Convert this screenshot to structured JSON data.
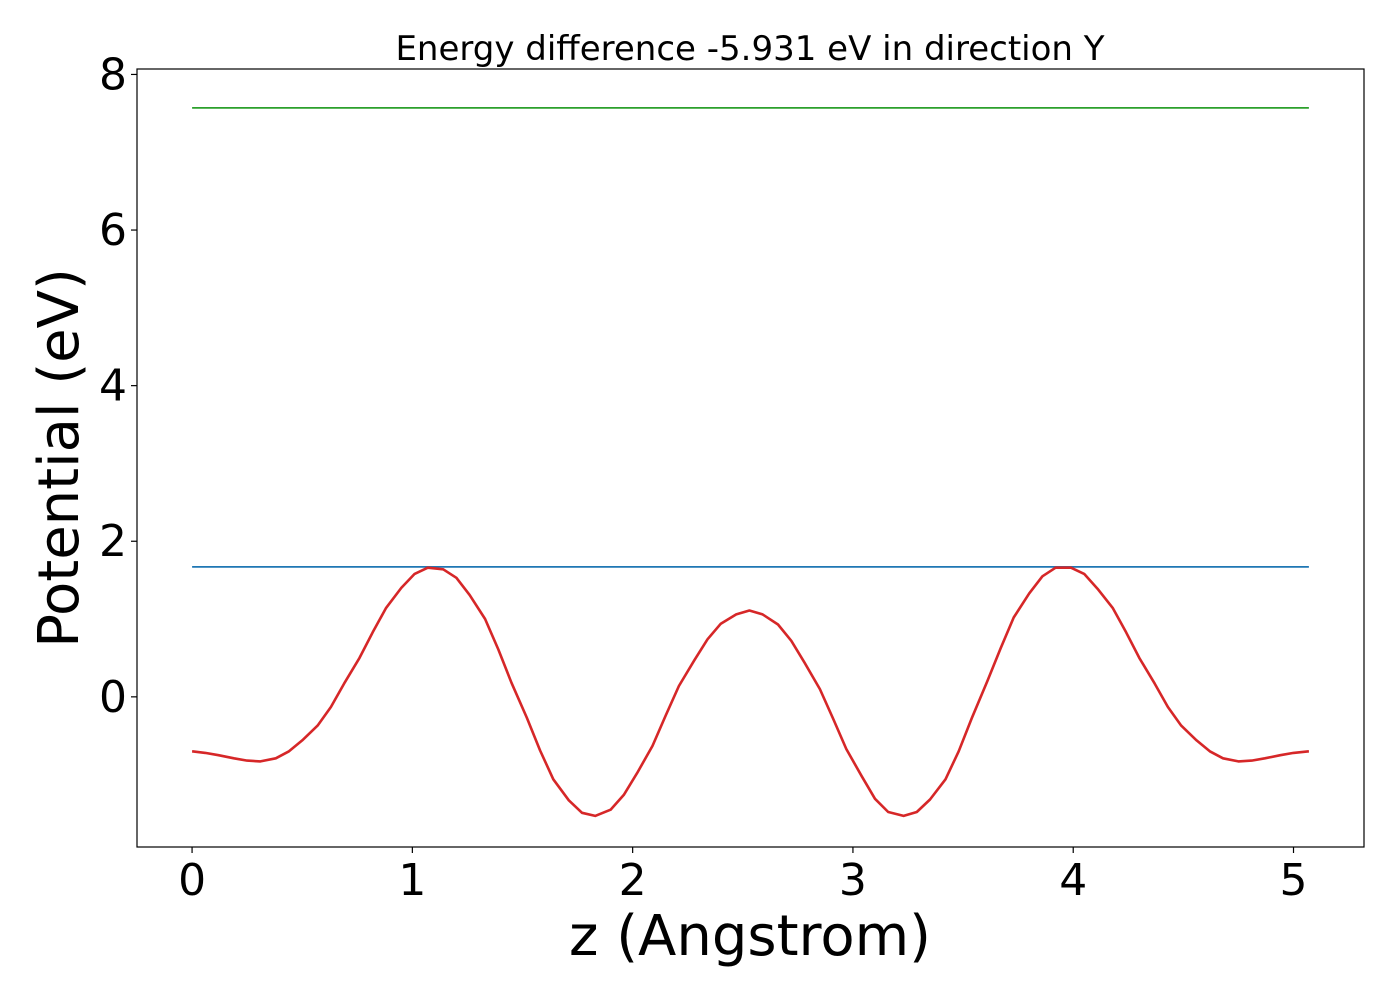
{
  "chart_data": {
    "type": "line",
    "title": "Energy difference -5.931 eV in direction Y",
    "xlabel": "z (Angstrom)",
    "ylabel": "Potential (eV)",
    "xlim": [
      -0.25,
      5.32
    ],
    "ylim": [
      -1.93,
      8.07
    ],
    "xticks": [
      0,
      1,
      2,
      3,
      4,
      5
    ],
    "yticks": [
      0,
      2,
      4,
      6,
      8
    ],
    "grid": false,
    "legend": "none",
    "series": [
      {
        "color": "#2ca02c",
        "x": [
          0,
          5.07
        ],
        "y": [
          7.57,
          7.57
        ]
      },
      {
        "color": "#1f77b4",
        "x": [
          0,
          5.07
        ],
        "y": [
          1.67,
          1.67
        ]
      },
      {
        "color": "#d62728",
        "x": [
          0,
          0.06,
          0.12,
          0.19,
          0.25,
          0.31,
          0.38,
          0.44,
          0.5,
          0.57,
          0.63,
          0.69,
          0.76,
          0.82,
          0.88,
          0.95,
          1.01,
          1.07,
          1.14,
          1.2,
          1.26,
          1.33,
          1.39,
          1.45,
          1.52,
          1.58,
          1.64,
          1.71,
          1.77,
          1.83,
          1.9,
          1.96,
          2.02,
          2.09,
          2.15,
          2.21,
          2.28,
          2.34,
          2.4,
          2.47,
          2.53,
          2.59,
          2.66,
          2.72,
          2.78,
          2.85,
          2.91,
          2.97,
          3.04,
          3.1,
          3.16,
          3.23,
          3.29,
          3.35,
          3.42,
          3.48,
          3.54,
          3.61,
          3.67,
          3.73,
          3.8,
          3.86,
          3.92,
          3.99,
          4.05,
          4.11,
          4.18,
          4.24,
          4.3,
          4.37,
          4.43,
          4.49,
          4.56,
          4.62,
          4.68,
          4.75,
          4.81,
          4.87,
          4.94,
          5.0,
          5.07
        ],
        "y": [
          -0.7,
          -0.72,
          -0.75,
          -0.79,
          -0.82,
          -0.83,
          -0.79,
          -0.7,
          -0.56,
          -0.37,
          -0.13,
          0.17,
          0.5,
          0.83,
          1.14,
          1.4,
          1.58,
          1.66,
          1.64,
          1.53,
          1.31,
          1.0,
          0.61,
          0.18,
          -0.27,
          -0.69,
          -1.06,
          -1.33,
          -1.49,
          -1.53,
          -1.45,
          -1.26,
          -0.98,
          -0.63,
          -0.24,
          0.14,
          0.47,
          0.74,
          0.94,
          1.06,
          1.11,
          1.06,
          0.93,
          0.72,
          0.44,
          0.1,
          -0.28,
          -0.67,
          -1.02,
          -1.31,
          -1.48,
          -1.53,
          -1.48,
          -1.32,
          -1.06,
          -0.7,
          -0.27,
          0.2,
          0.62,
          1.02,
          1.33,
          1.55,
          1.66,
          1.66,
          1.58,
          1.39,
          1.14,
          0.83,
          0.5,
          0.17,
          -0.13,
          -0.37,
          -0.56,
          -0.7,
          -0.79,
          -0.83,
          -0.82,
          -0.79,
          -0.75,
          -0.72,
          -0.7
        ]
      }
    ]
  }
}
